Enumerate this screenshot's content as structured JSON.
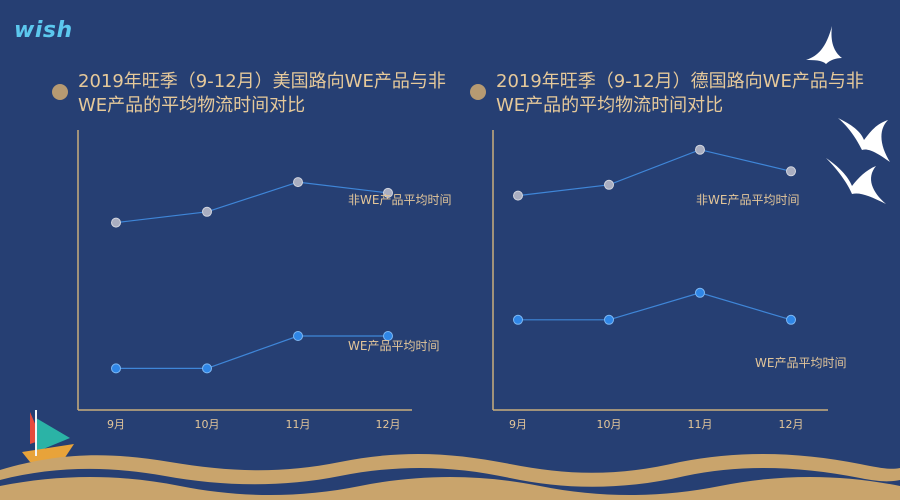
{
  "brand": {
    "logo_text": "wish"
  },
  "colors": {
    "background": "#263f73",
    "title": "#e6c99a",
    "axis": "#c9ad7c",
    "line": "#3f86d8",
    "we_marker": "#2f86e6",
    "non_we_marker": "#a9aec1",
    "wave_gold": "#c9a46c"
  },
  "chart_data": [
    {
      "type": "line",
      "title": "2019年旺季（9-12月）美国路向WE产品与非WE产品的平均物流时间对比",
      "categories": [
        "9月",
        "10月",
        "11月",
        "12月"
      ],
      "series": [
        {
          "name": "非WE产品平均时间",
          "values": [
            6.2,
            6.6,
            7.7,
            7.3
          ]
        },
        {
          "name": "WE产品平均时间",
          "values": [
            0.8,
            0.8,
            2.0,
            2.0
          ]
        }
      ],
      "ylim": [
        0,
        10
      ],
      "grid": false
    },
    {
      "type": "line",
      "title": "2019年旺季（9-12月）德国路向WE产品与非WE产品的平均物流时间对比",
      "categories": [
        "9月",
        "10月",
        "11月",
        "12月"
      ],
      "series": [
        {
          "name": "非WE产品平均时间",
          "values": [
            7.2,
            7.6,
            8.9,
            8.1
          ]
        },
        {
          "name": "WE产品平均时间",
          "values": [
            2.6,
            2.6,
            3.6,
            2.6
          ]
        }
      ],
      "ylim": [
        0,
        10
      ],
      "grid": false
    }
  ]
}
